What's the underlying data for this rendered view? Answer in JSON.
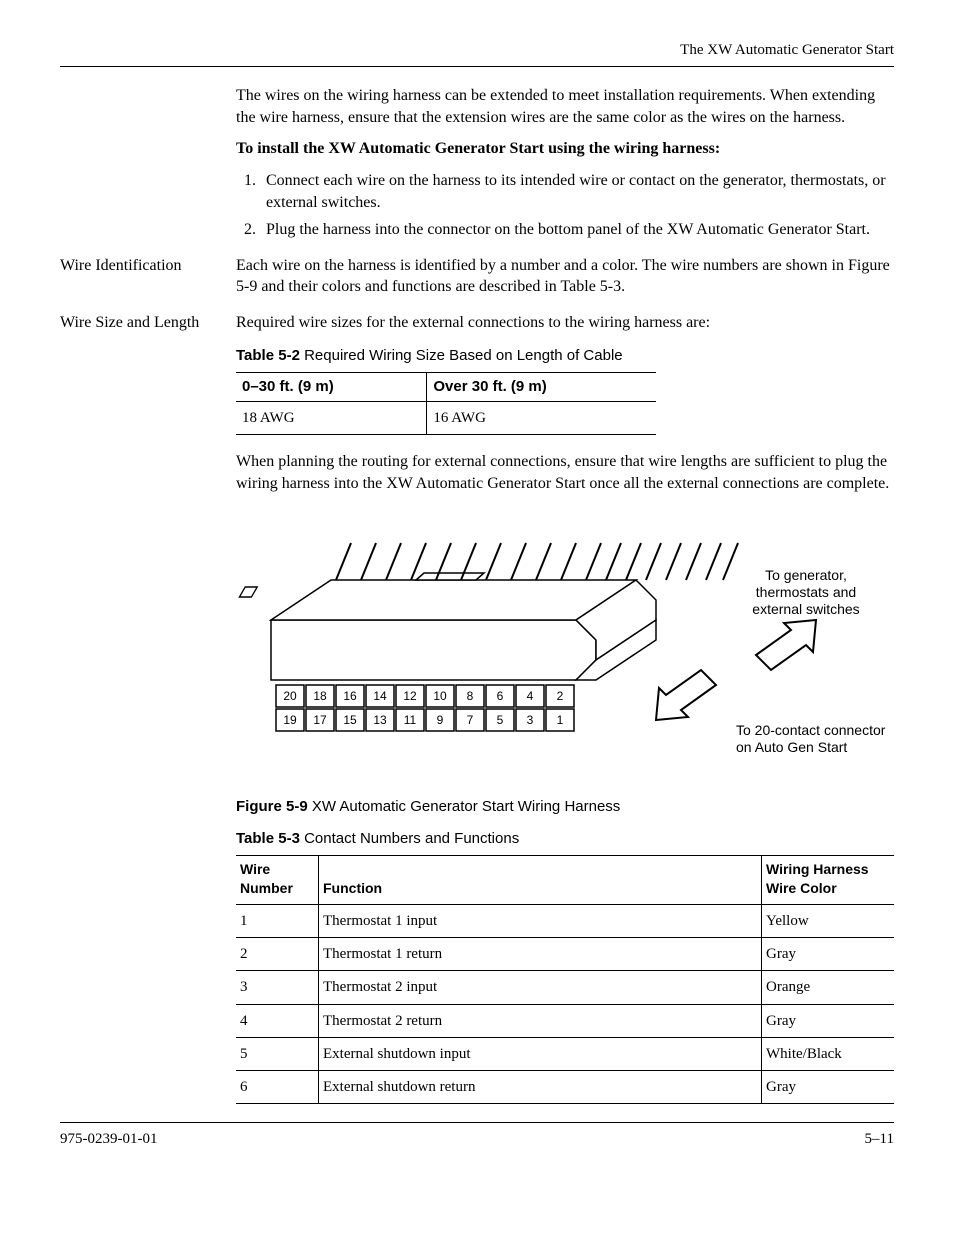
{
  "running_head": "The XW Automatic Generator Start",
  "intro_para": "The wires on the wiring harness can be extended to meet installation requirements. When extending the wire harness, ensure that the extension wires are the same color as the wires on the harness.",
  "install_heading": "To install the XW Automatic Generator Start using the wiring harness:",
  "steps": [
    "Connect each wire on the harness to its intended wire or contact on the generator, thermostats, or external switches.",
    "Plug the harness into the connector on the bottom panel of the XW Automatic Generator Start."
  ],
  "wire_id_label": "Wire Identification",
  "wire_id_text": "Each wire on the harness is identified by a number and a color. The wire numbers are shown in Figure 5-9 and their colors and functions are described in Table 5-3.",
  "wire_size_label": "Wire Size and Length",
  "wire_size_text": "Required wire sizes for the external connections to the wiring harness are:",
  "table52": {
    "number": "Table 5-2",
    "title": "Required Wiring Size Based on Length of Cable",
    "headers": [
      "0–30 ft. (9 m)",
      "Over 30 ft. (9 m)"
    ],
    "row": [
      "18 AWG",
      "16 AWG"
    ]
  },
  "routing_para": "When planning the routing for external connections, ensure that wire lengths are sufficient to plug the wiring harness into the XW Automatic Generator Start once all the external connections are complete.",
  "figure": {
    "number": "Figure 5-9",
    "title": "XW Automatic Generator Start Wiring Harness",
    "label_right_1": "To generator,",
    "label_right_2": "thermostats and",
    "label_right_3": "external switches",
    "label_bottom_1": "To 20-contact connector",
    "label_bottom_2": "on Auto Gen Start",
    "pin_top": [
      "20",
      "18",
      "16",
      "14",
      "12",
      "10",
      "8",
      "6",
      "4",
      "2"
    ],
    "pin_bottom": [
      "19",
      "17",
      "15",
      "13",
      "11",
      "9",
      "7",
      "5",
      "3",
      "1"
    ]
  },
  "table53": {
    "number": "Table 5-3",
    "title": "Contact Numbers and Functions",
    "headers": [
      "Wire Number",
      "Function",
      "Wiring Harness Wire Color"
    ],
    "rows": [
      [
        "1",
        "Thermostat 1 input",
        "Yellow"
      ],
      [
        "2",
        "Thermostat 1 return",
        "Gray"
      ],
      [
        "3",
        "Thermostat 2 input",
        "Orange"
      ],
      [
        "4",
        "Thermostat 2 return",
        "Gray"
      ],
      [
        "5",
        "External shutdown input",
        "White/Black"
      ],
      [
        "6",
        "External shutdown return",
        "Gray"
      ]
    ]
  },
  "footer_left": "975-0239-01-01",
  "footer_right": "5–11"
}
